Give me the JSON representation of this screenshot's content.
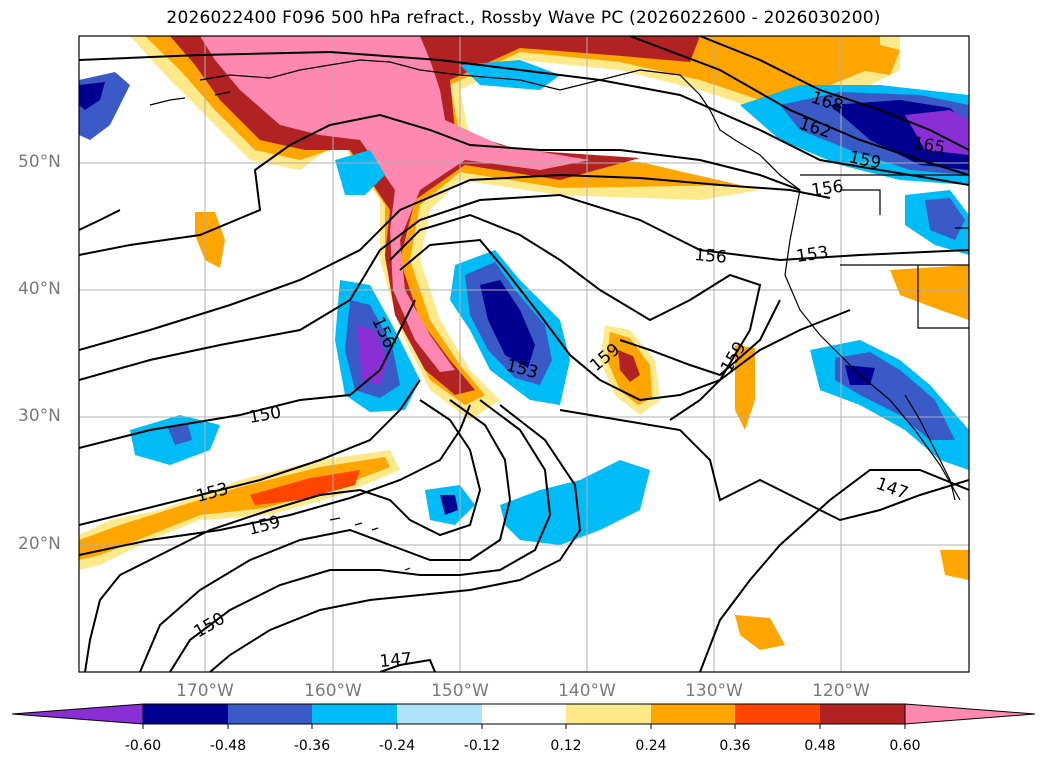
{
  "title": "2026022400 F096 500 hPa refract., Rossby Wave PC (2026022600 - 2026030200)",
  "map": {
    "lon_range": [
      -180,
      -110
    ],
    "lat_range": [
      10,
      60
    ],
    "lat_ticks": [
      "20°N",
      "30°N",
      "40°N",
      "50°N"
    ],
    "lon_ticks": [
      "170°W",
      "160°W",
      "150°W",
      "140°W",
      "130°W",
      "120°W"
    ],
    "contour_labels": [
      "168",
      "162",
      "165",
      "159",
      "156",
      "156",
      "153",
      "156",
      "153",
      "159",
      "159",
      "150",
      "153",
      "159",
      "150",
      "147",
      "147"
    ]
  },
  "colorbar": {
    "tick_labels": [
      "-0.60",
      "-0.48",
      "-0.36",
      "-0.24",
      "-0.12",
      "0.12",
      "0.24",
      "0.36",
      "0.48",
      "0.60"
    ],
    "colors": [
      "#8a2fd6",
      "#000090",
      "#3a5ac8",
      "#00bcf6",
      "#aee2f8",
      "#ffffff",
      "#fde88a",
      "#ffa500",
      "#ff4500",
      "#b22222",
      "#ff88b0"
    ]
  }
}
